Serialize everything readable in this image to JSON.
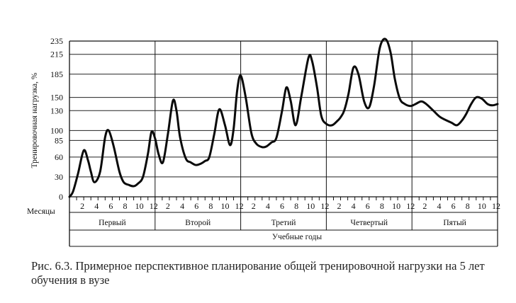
{
  "chart_data": {
    "type": "line",
    "ylabel": "Тренировочная нагрузка, %",
    "xlabel": "Учебные годы",
    "month_axis_label": "Месяцы",
    "y_ticks": [
      0,
      30,
      60,
      85,
      100,
      130,
      150,
      185,
      215,
      235
    ],
    "ylim": [
      0,
      235
    ],
    "month_ticks": [
      "2",
      "4",
      "6",
      "8",
      "10",
      "12"
    ],
    "years": [
      "Первый",
      "Второй",
      "Третий",
      "Четвертый",
      "Пятый"
    ],
    "grid": true,
    "series": [
      {
        "x": [
          0,
          0.5,
          1.2,
          2,
          2.6,
          3,
          3.5,
          4.3,
          5,
          5.5,
          6.2,
          7,
          7.6,
          8.3,
          9,
          9.6,
          10.3,
          11,
          11.5,
          12,
          12.5,
          13.1,
          13.8,
          14.5,
          15,
          15.5,
          16.3,
          17,
          17.7,
          18.4,
          19,
          19.6,
          20.3,
          21,
          21.8,
          22.5,
          23,
          23.5,
          24,
          24.7,
          25.5,
          26.2,
          27,
          27.6,
          28.3,
          29,
          29.8,
          30.4,
          31,
          31.7,
          32.5,
          33.5,
          34,
          34.7,
          35.3,
          36,
          36.8,
          37.5,
          38,
          38.5,
          39.1,
          39.8,
          40.5,
          41.3,
          42,
          42.7,
          43.5,
          44.3,
          45,
          45.6,
          46.3,
          47,
          47.8,
          48.5,
          49.3,
          50,
          51,
          52,
          53.5,
          54.3,
          55,
          55.6,
          56.3,
          57,
          57.8,
          58.6,
          59.3,
          60
        ],
        "y": [
          0,
          8,
          35,
          70,
          55,
          38,
          22,
          38,
          90,
          100,
          76,
          38,
          22,
          18,
          16,
          20,
          30,
          65,
          98,
          88,
          64,
          52,
          95,
          145,
          130,
          90,
          58,
          52,
          48,
          50,
          54,
          60,
          95,
          132,
          108,
          78,
          102,
          160,
          183,
          150,
          96,
          80,
          75,
          76,
          82,
          89,
          130,
          165,
          145,
          108,
          152,
          210,
          205,
          165,
          122,
          110,
          108,
          114,
          120,
          130,
          155,
          195,
          185,
          144,
          135,
          168,
          225,
          238,
          218,
          178,
          148,
          140,
          137,
          140,
          144,
          140,
          130,
          120,
          112,
          108,
          115,
          125,
          140,
          150,
          148,
          140,
          138,
          140
        ]
      }
    ]
  },
  "caption": "Рис. 6.3. Примерное перспективное планирование общей тренировочной нагрузки на 5 лет обучения в вузе"
}
